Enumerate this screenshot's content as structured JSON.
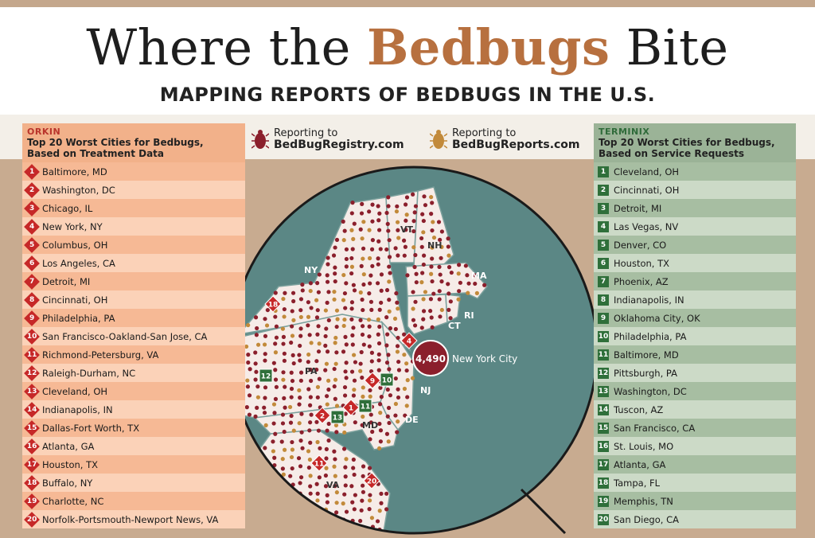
{
  "title": {
    "prefix": "Where the",
    "accent": "Bedbugs",
    "suffix": "Bite"
  },
  "subtitle": "MAPPING REPORTS OF BEDBUGS IN THE U.S.",
  "colors": {
    "orkin_red": "#c62828",
    "terminix_green": "#2f6f3a",
    "registry_dot": "#8b1f2c",
    "reports_dot": "#c28a3a",
    "water": "#5b8785"
  },
  "legend": [
    {
      "line1": "Reporting to",
      "line2": "BedBugRegistry.com",
      "icon": "red-bug-icon"
    },
    {
      "line1": "Reporting to",
      "line2": "BedBugReports.com",
      "icon": "tan-bug-icon"
    }
  ],
  "orkin": {
    "brand": "ORKIN",
    "title_line1": "Top 20 Worst Cities for Bedbugs,",
    "title_line2": "Based on Treatment Data",
    "cities": [
      {
        "rank": "1",
        "name": "Baltimore, MD"
      },
      {
        "rank": "2",
        "name": "Washington, DC"
      },
      {
        "rank": "3",
        "name": "Chicago, IL"
      },
      {
        "rank": "4",
        "name": "New York, NY"
      },
      {
        "rank": "5",
        "name": "Columbus, OH"
      },
      {
        "rank": "6",
        "name": "Los Angeles, CA"
      },
      {
        "rank": "7",
        "name": "Detroit, MI"
      },
      {
        "rank": "8",
        "name": "Cincinnati, OH"
      },
      {
        "rank": "9",
        "name": "Philadelphia, PA"
      },
      {
        "rank": "10",
        "name": "San Francisco-Oakland-San Jose, CA"
      },
      {
        "rank": "11",
        "name": "Richmond-Petersburg, VA"
      },
      {
        "rank": "12",
        "name": "Raleigh-Durham, NC"
      },
      {
        "rank": "13",
        "name": "Cleveland, OH"
      },
      {
        "rank": "14",
        "name": "Indianapolis, IN"
      },
      {
        "rank": "15",
        "name": "Dallas-Fort Worth, TX"
      },
      {
        "rank": "16",
        "name": "Atlanta, GA"
      },
      {
        "rank": "17",
        "name": "Houston, TX"
      },
      {
        "rank": "18",
        "name": "Buffalo, NY"
      },
      {
        "rank": "19",
        "name": "Charlotte, NC"
      },
      {
        "rank": "20",
        "name": "Norfolk-Portsmouth-Newport News, VA"
      }
    ]
  },
  "terminix": {
    "brand": "TERMINIX",
    "title_line1": "Top 20 Worst Cities for Bedbugs,",
    "title_line2": "Based on Service Requests",
    "cities": [
      {
        "rank": "1",
        "name": "Cleveland, OH"
      },
      {
        "rank": "2",
        "name": "Cincinnati, OH"
      },
      {
        "rank": "3",
        "name": "Detroit, MI"
      },
      {
        "rank": "4",
        "name": "Las Vegas, NV"
      },
      {
        "rank": "5",
        "name": "Denver, CO"
      },
      {
        "rank": "6",
        "name": "Houston, TX"
      },
      {
        "rank": "7",
        "name": "Phoenix, AZ"
      },
      {
        "rank": "8",
        "name": "Indianapolis, IN"
      },
      {
        "rank": "9",
        "name": "Oklahoma City, OK"
      },
      {
        "rank": "10",
        "name": "Philadelphia, PA"
      },
      {
        "rank": "11",
        "name": "Baltimore, MD"
      },
      {
        "rank": "12",
        "name": "Pittsburgh, PA"
      },
      {
        "rank": "13",
        "name": "Washington, DC"
      },
      {
        "rank": "14",
        "name": "Tuscon, AZ"
      },
      {
        "rank": "15",
        "name": "San Francisco, CA"
      },
      {
        "rank": "16",
        "name": "St. Louis, MO"
      },
      {
        "rank": "17",
        "name": "Atlanta, GA"
      },
      {
        "rank": "18",
        "name": "Tampa, FL"
      },
      {
        "rank": "19",
        "name": "Memphis, TN"
      },
      {
        "rank": "20",
        "name": "San Diego, CA"
      }
    ]
  },
  "map": {
    "state_labels": [
      "NY",
      "VT",
      "NH",
      "MA",
      "CT",
      "RI",
      "PA",
      "NJ",
      "DE",
      "MD",
      "VA"
    ],
    "callout_count": "4,490",
    "callout_city": "New York City",
    "orkin_markers": [
      "18",
      "4",
      "9",
      "1",
      "2",
      "11",
      "20"
    ],
    "terminix_markers": [
      "12",
      "10",
      "11",
      "13"
    ]
  }
}
